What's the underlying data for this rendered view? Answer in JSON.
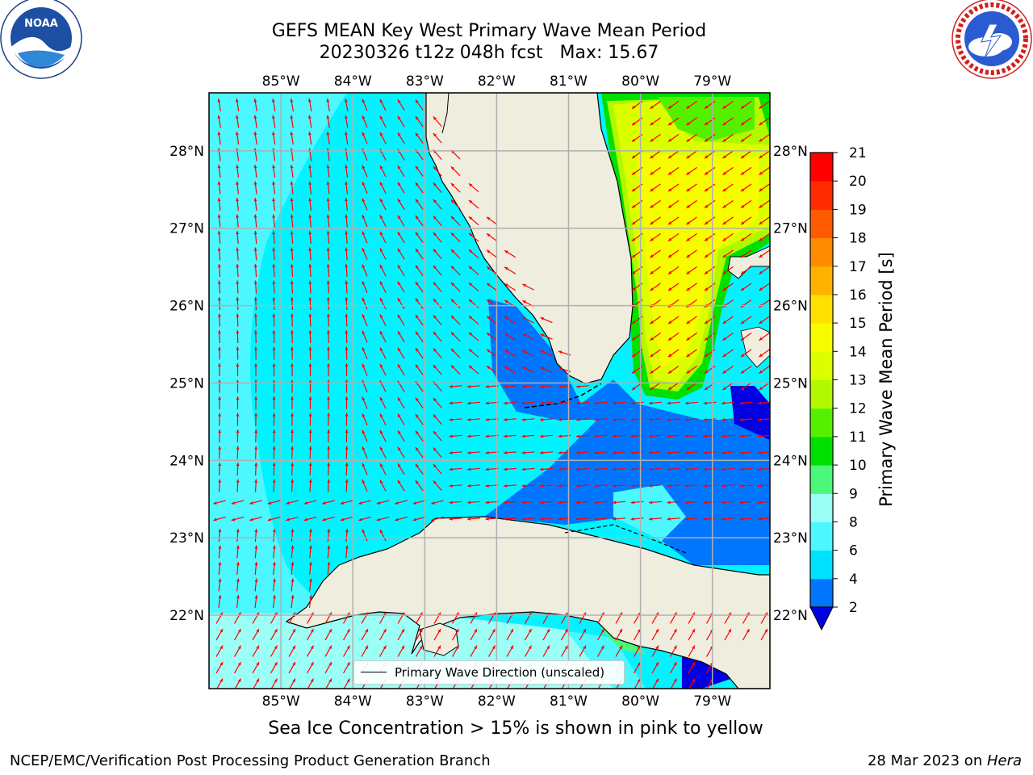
{
  "title": {
    "line1": "GEFS MEAN Key West Primary Wave Mean Period",
    "line2": "20230326 t12z 048h fcst   Max: 15.67"
  },
  "logos": {
    "left": {
      "name": "noaa-logo",
      "text": "NOAA"
    },
    "right": {
      "name": "nws-logo",
      "text": "NATIONAL WEATHER SERVICE"
    }
  },
  "map": {
    "lon_range": [
      -86.0,
      -78.2
    ],
    "lat_range": [
      21.05,
      28.75
    ],
    "lon_ticks": [
      "85°W",
      "84°W",
      "83°W",
      "82°W",
      "81°W",
      "80°W",
      "79°W"
    ],
    "lat_ticks": [
      "22°N",
      "23°N",
      "24°N",
      "25°N",
      "26°N",
      "27°N",
      "28°N"
    ],
    "colors": {
      "land": "#efedde",
      "background_sea": "#00f4ff",
      "arrows": "#ff0000",
      "grid": "#b0b0b0",
      "coast": "#000000"
    },
    "legend": "Primary Wave Direction (unscaled)"
  },
  "colorbar": {
    "label": "Primary Wave Mean Period [s]",
    "ticks": [
      "2",
      "4",
      "6",
      "8",
      "9",
      "10",
      "11",
      "12",
      "13",
      "14",
      "15",
      "16",
      "17",
      "18",
      "19",
      "20",
      "21"
    ],
    "colors": [
      "#0076ff",
      "#00e0ff",
      "#4cf7ff",
      "#9cfff6",
      "#4df77a",
      "#00e000",
      "#55f000",
      "#b2f800",
      "#dcff00",
      "#f8fc00",
      "#ffe000",
      "#ffb300",
      "#ff8c00",
      "#ff5a00",
      "#ff2a00",
      "#ff0000"
    ],
    "extend_color": "#0000e0"
  },
  "subtitle": "Sea Ice Concentration > 15% is shown in pink to yellow",
  "footer": {
    "left": "NCEP/EMC/Verification Post Processing Product Generation Branch",
    "right_date": "28 Mar 2023 on ",
    "right_machine": "Hera"
  }
}
